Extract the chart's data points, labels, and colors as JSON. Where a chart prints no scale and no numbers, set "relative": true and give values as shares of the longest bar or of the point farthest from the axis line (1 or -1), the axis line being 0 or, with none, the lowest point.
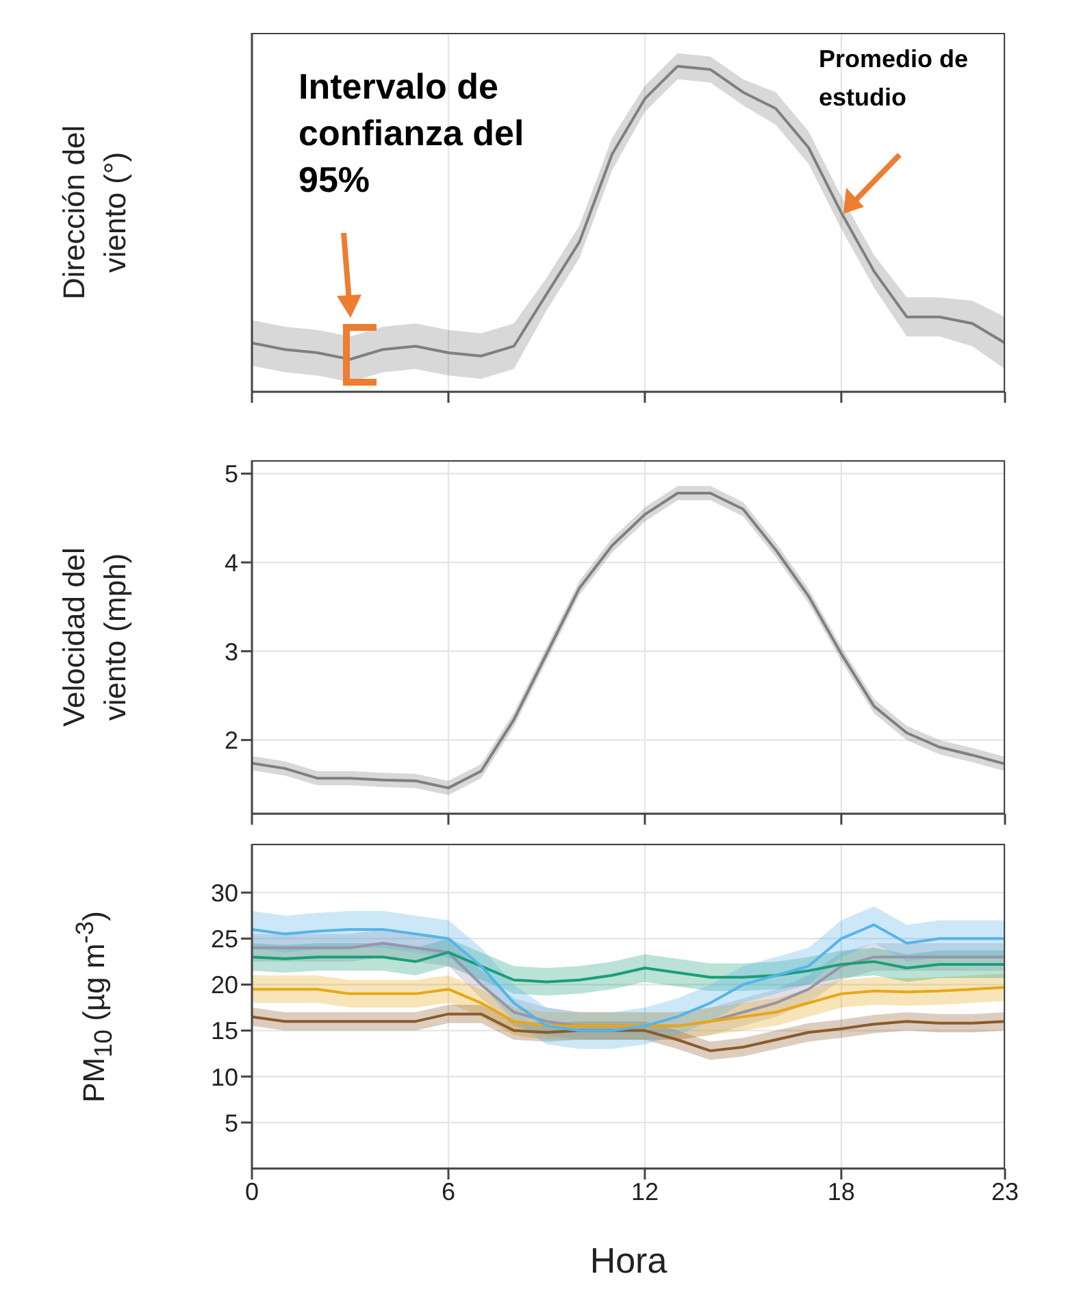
{
  "chart_data": [
    {
      "type": "line",
      "ylabel": "Dirección del viento (°)",
      "relative": true,
      "x": [
        0,
        1,
        2,
        3,
        4,
        5,
        6,
        7,
        8,
        9,
        10,
        11,
        12,
        13,
        14,
        15,
        16,
        17,
        18,
        19,
        20,
        21,
        22,
        23
      ],
      "xlim": [
        0,
        23
      ],
      "xticks": [
        0,
        6,
        12,
        18,
        23
      ],
      "grid": "x",
      "tick_labels": false,
      "series": [
        {
          "color": "#7f7f7f",
          "values": [
            0.15,
            0.13,
            0.12,
            0.1,
            0.13,
            0.14,
            0.12,
            0.11,
            0.14,
            0.3,
            0.46,
            0.73,
            0.9,
            1,
            0.99,
            0.92,
            0.87,
            0.75,
            0.55,
            0.37,
            0.23,
            0.23,
            0.21,
            0.15
          ],
          "lower": [
            0.08,
            0.06,
            0.05,
            0.03,
            0.06,
            0.07,
            0.05,
            0.04,
            0.07,
            0.25,
            0.41,
            0.68,
            0.86,
            0.96,
            0.95,
            0.88,
            0.82,
            0.7,
            0.5,
            0.32,
            0.17,
            0.17,
            0.14,
            0.07
          ],
          "upper": [
            0.22,
            0.2,
            0.19,
            0.17,
            0.2,
            0.21,
            0.19,
            0.18,
            0.21,
            0.35,
            0.51,
            0.78,
            0.94,
            1.04,
            1.03,
            0.96,
            0.92,
            0.8,
            0.6,
            0.42,
            0.29,
            0.29,
            0.28,
            0.23
          ]
        }
      ],
      "annotations": [
        "Intervalo de confianza del 95%",
        "Promedio de estudio"
      ]
    },
    {
      "type": "line",
      "ylabel": "Velocidad del viento (mph)",
      "x": [
        0,
        1,
        2,
        3,
        4,
        5,
        6,
        7,
        8,
        9,
        10,
        11,
        12,
        13,
        14,
        15,
        16,
        17,
        18,
        19,
        20,
        21,
        22,
        23
      ],
      "xlim": [
        0,
        23
      ],
      "xticks": [
        0,
        6,
        12,
        18,
        23
      ],
      "ylim": [
        1.17,
        5.15
      ],
      "yticks": [
        2,
        3,
        4,
        5
      ],
      "grid": true,
      "tick_labels": "y",
      "series": [
        {
          "color": "#7f7f7f",
          "values": [
            1.74,
            1.68,
            1.57,
            1.57,
            1.55,
            1.54,
            1.46,
            1.65,
            2.23,
            2.97,
            3.71,
            4.19,
            4.54,
            4.78,
            4.78,
            4.6,
            4.14,
            3.62,
            2.97,
            2.38,
            2.08,
            1.92,
            1.83,
            1.73
          ],
          "lower": [
            1.66,
            1.6,
            1.49,
            1.49,
            1.47,
            1.46,
            1.38,
            1.57,
            2.15,
            2.89,
            3.63,
            4.11,
            4.46,
            4.7,
            4.7,
            4.52,
            4.06,
            3.54,
            2.89,
            2.3,
            2.0,
            1.84,
            1.75,
            1.65
          ],
          "upper": [
            1.82,
            1.76,
            1.65,
            1.65,
            1.63,
            1.62,
            1.54,
            1.73,
            2.31,
            3.05,
            3.79,
            4.27,
            4.62,
            4.86,
            4.86,
            4.68,
            4.22,
            3.7,
            3.05,
            2.46,
            2.16,
            2.0,
            1.91,
            1.81
          ]
        }
      ]
    },
    {
      "type": "line",
      "ylabel": "PM$_{10}$ (µg m$^{-3}$)",
      "xlabel": "Hora",
      "x": [
        0,
        1,
        2,
        3,
        4,
        5,
        6,
        7,
        8,
        9,
        10,
        11,
        12,
        13,
        14,
        15,
        16,
        17,
        18,
        19,
        20,
        21,
        22,
        23
      ],
      "xlim": [
        0,
        23
      ],
      "xticks": [
        0,
        6,
        12,
        18,
        23
      ],
      "ylim": [
        0,
        35.3
      ],
      "yticks": [
        5,
        10,
        15,
        20,
        25,
        30
      ],
      "grid": true,
      "series": [
        {
          "color": "#9a94a8",
          "values": [
            24,
            24,
            24,
            24,
            24.5,
            24,
            23.5,
            20,
            17,
            16,
            15.5,
            15.5,
            15.5,
            15.5,
            16,
            17,
            18,
            19.5,
            22,
            23,
            23,
            23,
            23,
            23
          ],
          "lower": [
            22.5,
            22.5,
            22.5,
            22.5,
            23,
            22.5,
            22,
            18.5,
            15.5,
            14.5,
            14,
            14,
            14,
            14,
            14.5,
            15.5,
            16.5,
            18,
            20.5,
            21.5,
            21.5,
            21.5,
            21.5,
            21.5
          ],
          "upper": [
            25.5,
            25.5,
            25.5,
            25.5,
            26,
            25.5,
            25,
            21.5,
            18.5,
            17.5,
            17,
            17,
            17,
            17,
            17.5,
            18.5,
            19.5,
            21,
            23.5,
            24.5,
            24.5,
            24.5,
            24.5,
            24.5
          ]
        },
        {
          "color": "#e6a817",
          "values": [
            19.5,
            19.5,
            19.5,
            19,
            19,
            19,
            19.5,
            18,
            16,
            15.5,
            15.5,
            15.5,
            15.5,
            15.5,
            16,
            16.5,
            17,
            18,
            19,
            19.3,
            19.2,
            19.3,
            19.5,
            19.7
          ],
          "lower": [
            18,
            18,
            18,
            17.5,
            17.5,
            17.5,
            18,
            16.5,
            14.5,
            14,
            14,
            14,
            14,
            14,
            14.5,
            15,
            15.5,
            16.5,
            17.5,
            17.8,
            17.7,
            17.8,
            18,
            18.2
          ],
          "upper": [
            21,
            21,
            21,
            20.5,
            20.5,
            20.5,
            21,
            19.5,
            17.5,
            17,
            17,
            17,
            17,
            17,
            17.5,
            18,
            18.5,
            19.5,
            20.5,
            20.8,
            20.7,
            20.8,
            21,
            21.2
          ]
        },
        {
          "color": "#8c5a2b",
          "values": [
            16.5,
            16,
            16,
            16,
            16,
            16,
            16.8,
            16.8,
            15,
            14.8,
            15,
            15,
            15,
            14,
            12.8,
            13.2,
            14,
            14.8,
            15.2,
            15.7,
            16,
            15.8,
            15.8,
            16
          ],
          "lower": [
            15.5,
            15,
            15,
            15,
            15,
            15,
            15.8,
            15.8,
            14,
            13.8,
            14,
            14,
            14,
            13,
            11.8,
            12.2,
            13,
            13.8,
            14.2,
            14.7,
            15,
            14.8,
            14.8,
            15
          ],
          "upper": [
            17.5,
            17,
            17,
            17,
            17,
            17,
            17.8,
            17.8,
            16,
            15.8,
            16,
            16,
            16,
            15,
            13.8,
            14.2,
            15,
            15.8,
            16.2,
            16.7,
            17,
            16.8,
            16.8,
            17
          ]
        },
        {
          "color": "#1b9e77",
          "values": [
            23,
            22.8,
            23,
            23,
            23,
            22.5,
            23.5,
            22,
            20.5,
            20.3,
            20.5,
            21,
            21.8,
            21.3,
            20.8,
            20.8,
            21,
            21.5,
            22.2,
            22.5,
            21.8,
            22.2,
            22.2,
            22.2
          ],
          "lower": [
            21.5,
            21.3,
            21.5,
            21.5,
            21.5,
            21,
            22,
            20.5,
            19,
            18.8,
            19,
            19.5,
            20.3,
            19.8,
            19.3,
            19.3,
            19.5,
            20,
            20.7,
            21,
            20.3,
            20.7,
            20.7,
            20.7
          ],
          "upper": [
            24.5,
            24.3,
            24.5,
            24.5,
            24.5,
            24,
            25,
            23.5,
            22,
            21.8,
            22,
            22.5,
            23.3,
            22.8,
            22.3,
            22.3,
            22.5,
            23,
            23.7,
            24,
            23.3,
            23.7,
            23.7,
            23.7
          ]
        },
        {
          "color": "#56b4e9",
          "values": [
            26,
            25.5,
            25.8,
            26,
            26,
            25.5,
            25,
            22,
            18,
            15.5,
            15,
            15,
            15.5,
            16.5,
            18,
            20,
            21,
            22,
            25,
            26.5,
            24.5,
            25,
            25,
            25
          ],
          "lower": [
            24,
            23.5,
            23.8,
            24,
            24,
            23.5,
            23,
            20,
            16,
            13.5,
            13,
            13,
            13.5,
            14.5,
            16,
            18,
            19,
            20,
            23,
            24.5,
            22.5,
            23,
            23,
            23
          ],
          "upper": [
            28,
            27.5,
            27.8,
            28,
            28,
            27.5,
            27,
            24,
            20,
            17.5,
            17,
            17,
            17.5,
            18.5,
            20,
            22,
            23,
            24,
            27,
            28.5,
            26.5,
            27,
            27,
            27
          ]
        }
      ]
    }
  ]
}
